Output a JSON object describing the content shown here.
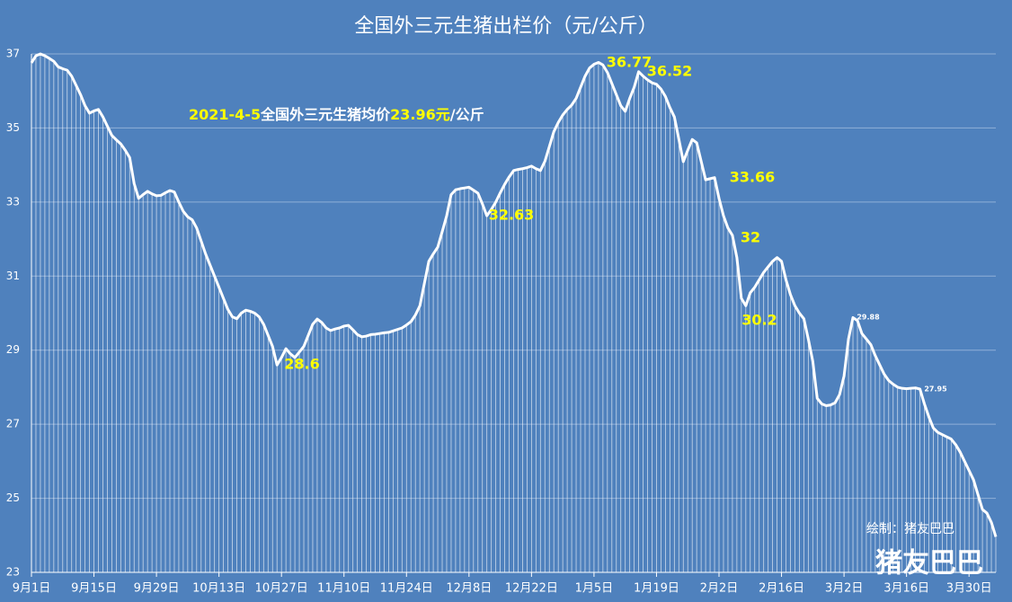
{
  "chart_data": {
    "type": "line",
    "title": "全国外三元生猪出栏价（元/公斤）",
    "subtitle_parts": [
      "2021-4-5",
      "全国外三元生猪均价",
      "23.96元",
      "/公斤"
    ],
    "credit": "绘制：猪友巴巴",
    "watermark": "猪友巴巴",
    "annotations": [
      "28.6",
      "32.63",
      "36.77",
      "36.52",
      "33.66",
      "32",
      "30.2",
      "29.88",
      "27.95"
    ],
    "categories": [
      "9月1日",
      null,
      null,
      null,
      null,
      null,
      null,
      null,
      null,
      null,
      null,
      null,
      null,
      null,
      "9月15日",
      null,
      null,
      null,
      null,
      null,
      null,
      null,
      null,
      null,
      null,
      null,
      null,
      null,
      "9月29日",
      null,
      null,
      null,
      null,
      null,
      null,
      null,
      null,
      null,
      null,
      null,
      null,
      null,
      "10月13日",
      null,
      null,
      null,
      null,
      null,
      null,
      null,
      null,
      null,
      null,
      null,
      null,
      null,
      "10月27日",
      null,
      null,
      null,
      null,
      null,
      null,
      null,
      null,
      null,
      null,
      null,
      null,
      null,
      "11月10日",
      null,
      null,
      null,
      null,
      null,
      null,
      null,
      null,
      null,
      null,
      null,
      null,
      null,
      "11月24日",
      null,
      null,
      null,
      null,
      null,
      null,
      null,
      null,
      null,
      null,
      null,
      null,
      null,
      "12月8日",
      null,
      null,
      null,
      null,
      null,
      null,
      null,
      null,
      null,
      null,
      null,
      null,
      null,
      "12月22日",
      null,
      null,
      null,
      null,
      null,
      null,
      null,
      null,
      null,
      null,
      null,
      null,
      null,
      "1月5日",
      null,
      null,
      null,
      null,
      null,
      null,
      null,
      null,
      null,
      null,
      null,
      null,
      null,
      "1月19日",
      null,
      null,
      null,
      null,
      null,
      null,
      null,
      null,
      null,
      null,
      null,
      null,
      null,
      "2月2日",
      null,
      null,
      null,
      null,
      null,
      null,
      null,
      null,
      null,
      null,
      null,
      null,
      null,
      "2月16日",
      null,
      null,
      null,
      null,
      null,
      null,
      null,
      null,
      null,
      null,
      null,
      null,
      null,
      "3月2日",
      null,
      null,
      null,
      null,
      null,
      null,
      null,
      null,
      null,
      null,
      null,
      null,
      null,
      "3月16日",
      null,
      null,
      null,
      null,
      null,
      null,
      null,
      null,
      null,
      null,
      null,
      null,
      null,
      "3月30日",
      null,
      null,
      null,
      null,
      null,
      null
    ],
    "values": [
      36.76,
      36.95,
      37.0,
      36.95,
      36.88,
      36.8,
      36.65,
      36.6,
      36.56,
      36.4,
      36.15,
      35.9,
      35.6,
      35.4,
      35.46,
      35.5,
      35.3,
      35.05,
      34.8,
      34.68,
      34.57,
      34.4,
      34.2,
      33.5,
      33.1,
      33.2,
      33.29,
      33.22,
      33.17,
      33.18,
      33.25,
      33.31,
      33.27,
      33.0,
      32.75,
      32.6,
      32.52,
      32.3,
      31.95,
      31.6,
      31.3,
      31.0,
      30.7,
      30.4,
      30.1,
      29.9,
      29.85,
      30.0,
      30.08,
      30.05,
      30.0,
      29.9,
      29.7,
      29.4,
      29.1,
      28.6,
      28.8,
      29.04,
      28.9,
      28.8,
      28.95,
      29.1,
      29.4,
      29.7,
      29.84,
      29.75,
      29.6,
      29.53,
      29.57,
      29.6,
      29.65,
      29.67,
      29.55,
      29.42,
      29.36,
      29.38,
      29.42,
      29.43,
      29.45,
      29.47,
      29.48,
      29.52,
      29.56,
      29.6,
      29.68,
      29.77,
      29.95,
      30.2,
      30.8,
      31.4,
      31.6,
      31.78,
      32.2,
      32.63,
      33.2,
      33.33,
      33.36,
      33.38,
      33.4,
      33.32,
      33.24,
      32.95,
      32.63,
      32.8,
      33.0,
      33.25,
      33.48,
      33.68,
      33.85,
      33.88,
      33.9,
      33.93,
      33.97,
      33.9,
      33.85,
      34.1,
      34.5,
      34.9,
      35.15,
      35.35,
      35.5,
      35.62,
      35.8,
      36.1,
      36.4,
      36.62,
      36.72,
      36.77,
      36.7,
      36.5,
      36.2,
      35.9,
      35.6,
      35.45,
      35.8,
      36.1,
      36.52,
      36.4,
      36.3,
      36.22,
      36.18,
      36.05,
      35.85,
      35.55,
      35.3,
      34.7,
      34.09,
      34.4,
      34.69,
      34.6,
      34.1,
      33.6,
      33.63,
      33.66,
      33.1,
      32.63,
      32.3,
      32.1,
      31.5,
      30.4,
      30.2,
      30.55,
      30.7,
      30.9,
      31.1,
      31.25,
      31.4,
      31.5,
      31.4,
      30.9,
      30.5,
      30.2,
      30.0,
      29.85,
      29.3,
      28.7,
      27.7,
      27.55,
      27.5,
      27.52,
      27.58,
      27.8,
      28.3,
      29.3,
      29.88,
      29.8,
      29.45,
      29.3,
      29.15,
      28.85,
      28.6,
      28.35,
      28.18,
      28.08,
      28.0,
      27.97,
      27.96,
      27.97,
      27.98,
      27.95,
      27.55,
      27.2,
      26.9,
      26.78,
      26.72,
      26.66,
      26.6,
      26.45,
      26.25,
      26.0,
      25.75,
      25.5,
      25.1,
      24.7,
      24.6,
      24.35,
      23.96
    ],
    "color": "#ffffff",
    "ylim": [
      23,
      37
    ],
    "yticks": [
      23,
      25,
      27,
      29,
      31,
      33,
      35,
      37
    ],
    "grid": true
  }
}
